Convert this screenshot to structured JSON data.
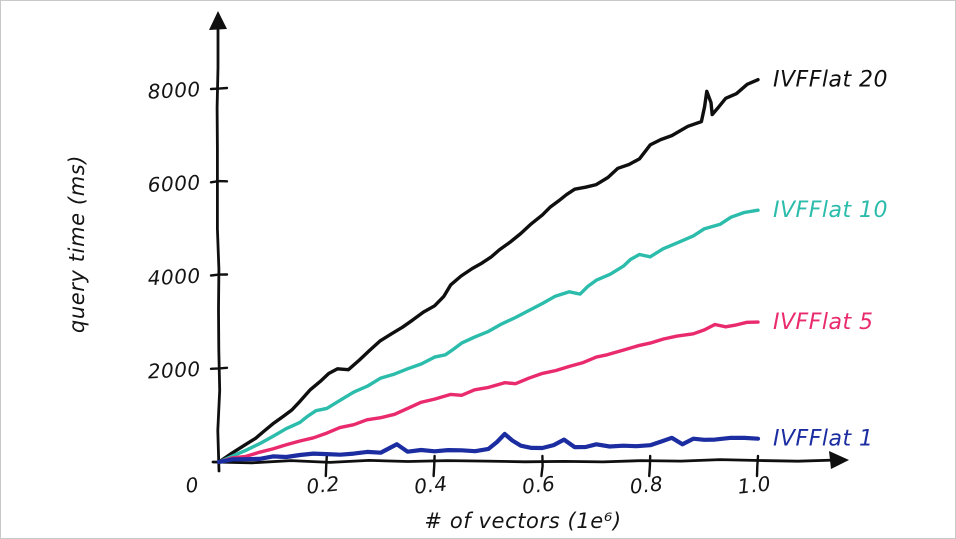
{
  "figure": {
    "background": "#ffffff",
    "border_color": "#c9c9c9"
  },
  "chart_data": {
    "type": "line",
    "style": "hand-drawn",
    "title": "",
    "xlabel": "# of vectors (1e⁶)",
    "ylabel": "query time (ms)",
    "xlim": [
      0,
      1.05
    ],
    "ylim": [
      0,
      8600
    ],
    "grid": false,
    "legend_position": "right-end-of-lines",
    "origin_label": "0",
    "x_ticks": [
      0.2,
      0.4,
      0.6,
      0.8,
      1.0
    ],
    "x_tick_labels": [
      "0.2",
      "0.4",
      "0.6",
      "0.8",
      "1.0"
    ],
    "y_ticks": [
      2000,
      4000,
      6000,
      8000
    ],
    "y_tick_labels": [
      "2000",
      "4000",
      "6000",
      "8000"
    ],
    "axis_color": "#0f0f0f",
    "series": [
      {
        "name": "IVFFlat 20",
        "color": "#0f0f0f",
        "stroke_width": 3.4,
        "points": [
          [
            0,
            0
          ],
          [
            0.05,
            380
          ],
          [
            0.1,
            820
          ],
          [
            0.15,
            1300
          ],
          [
            0.19,
            1750
          ],
          [
            0.22,
            2000
          ],
          [
            0.24,
            1980
          ],
          [
            0.28,
            2400
          ],
          [
            0.32,
            2750
          ],
          [
            0.36,
            3050
          ],
          [
            0.4,
            3350
          ],
          [
            0.43,
            3800
          ],
          [
            0.47,
            4150
          ],
          [
            0.52,
            4550
          ],
          [
            0.56,
            4900
          ],
          [
            0.6,
            5300
          ],
          [
            0.63,
            5600
          ],
          [
            0.66,
            5850
          ],
          [
            0.7,
            5950
          ],
          [
            0.74,
            6300
          ],
          [
            0.78,
            6500
          ],
          [
            0.8,
            6800
          ],
          [
            0.84,
            7000
          ],
          [
            0.87,
            7200
          ],
          [
            0.895,
            7300
          ],
          [
            0.905,
            7950
          ],
          [
            0.915,
            7450
          ],
          [
            0.94,
            7800
          ],
          [
            0.96,
            7900
          ],
          [
            0.98,
            8100
          ],
          [
            1,
            8200
          ]
        ]
      },
      {
        "name": "IVFFlat 10",
        "color": "#2bbcab",
        "stroke_width": 3.4,
        "points": [
          [
            0,
            0
          ],
          [
            0.05,
            250
          ],
          [
            0.1,
            550
          ],
          [
            0.15,
            850
          ],
          [
            0.18,
            1100
          ],
          [
            0.2,
            1150
          ],
          [
            0.25,
            1500
          ],
          [
            0.3,
            1800
          ],
          [
            0.35,
            2000
          ],
          [
            0.4,
            2250
          ],
          [
            0.42,
            2300
          ],
          [
            0.45,
            2550
          ],
          [
            0.5,
            2800
          ],
          [
            0.55,
            3100
          ],
          [
            0.6,
            3400
          ],
          [
            0.65,
            3650
          ],
          [
            0.67,
            3600
          ],
          [
            0.7,
            3900
          ],
          [
            0.75,
            4200
          ],
          [
            0.78,
            4450
          ],
          [
            0.8,
            4400
          ],
          [
            0.85,
            4700
          ],
          [
            0.88,
            4850
          ],
          [
            0.9,
            5000
          ],
          [
            0.93,
            5100
          ],
          [
            0.95,
            5250
          ],
          [
            1,
            5400
          ]
        ]
      },
      {
        "name": "IVFFlat 5",
        "color": "#e92a6d",
        "stroke_width": 3.4,
        "points": [
          [
            0,
            0
          ],
          [
            0.05,
            120
          ],
          [
            0.1,
            280
          ],
          [
            0.15,
            450
          ],
          [
            0.2,
            620
          ],
          [
            0.25,
            800
          ],
          [
            0.3,
            950
          ],
          [
            0.35,
            1150
          ],
          [
            0.4,
            1350
          ],
          [
            0.43,
            1450
          ],
          [
            0.45,
            1430
          ],
          [
            0.5,
            1600
          ],
          [
            0.53,
            1700
          ],
          [
            0.55,
            1680
          ],
          [
            0.6,
            1900
          ],
          [
            0.65,
            2050
          ],
          [
            0.7,
            2250
          ],
          [
            0.72,
            2300
          ],
          [
            0.75,
            2400
          ],
          [
            0.78,
            2500
          ],
          [
            0.8,
            2550
          ],
          [
            0.85,
            2700
          ],
          [
            0.88,
            2750
          ],
          [
            0.92,
            2950
          ],
          [
            0.94,
            2900
          ],
          [
            1,
            3000
          ]
        ]
      },
      {
        "name": "IVFFlat 1",
        "color": "#1b2da0",
        "stroke_width": 4.2,
        "points": [
          [
            0,
            0
          ],
          [
            0.05,
            60
          ],
          [
            0.1,
            120
          ],
          [
            0.15,
            150
          ],
          [
            0.2,
            170
          ],
          [
            0.25,
            180
          ],
          [
            0.3,
            200
          ],
          [
            0.33,
            380
          ],
          [
            0.35,
            220
          ],
          [
            0.4,
            230
          ],
          [
            0.45,
            250
          ],
          [
            0.5,
            280
          ],
          [
            0.53,
            600
          ],
          [
            0.56,
            350
          ],
          [
            0.6,
            300
          ],
          [
            0.64,
            480
          ],
          [
            0.66,
            320
          ],
          [
            0.7,
            380
          ],
          [
            0.75,
            350
          ],
          [
            0.8,
            360
          ],
          [
            0.84,
            520
          ],
          [
            0.86,
            380
          ],
          [
            0.88,
            500
          ],
          [
            0.92,
            480
          ],
          [
            0.95,
            520
          ],
          [
            1,
            500
          ]
        ]
      }
    ]
  }
}
